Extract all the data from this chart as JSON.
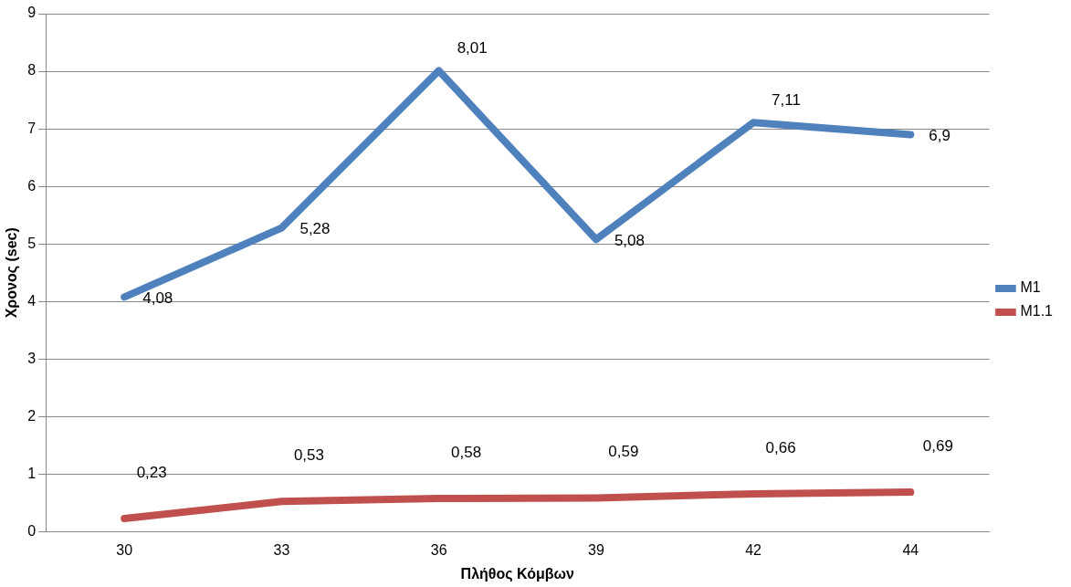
{
  "chart_data": {
    "type": "line",
    "xlabel": "Πλήθος Κόμβων",
    "ylabel": "Χρονος (sec)",
    "categories": [
      "30",
      "33",
      "36",
      "39",
      "42",
      "44"
    ],
    "series": [
      {
        "name": "M1",
        "color": "#4f81bd",
        "values": [
          4.08,
          5.28,
          8.01,
          5.08,
          7.11,
          6.9
        ],
        "value_labels": [
          "4,08",
          "5,28",
          "8,01",
          "5,08",
          "7,11",
          "6,9"
        ]
      },
      {
        "name": "M1.1",
        "color": "#c0504d",
        "values": [
          0.23,
          0.53,
          0.58,
          0.59,
          0.66,
          0.69
        ],
        "value_labels": [
          "0,23",
          "0,53",
          "0,58",
          "0,59",
          "0,66",
          "0,69"
        ]
      }
    ],
    "ylim": [
      0,
      9
    ],
    "yticks": [
      0,
      1,
      2,
      3,
      4,
      5,
      6,
      7,
      8,
      9
    ],
    "grid": "y",
    "legend": "right",
    "marker": "none",
    "line_style": "solid"
  }
}
